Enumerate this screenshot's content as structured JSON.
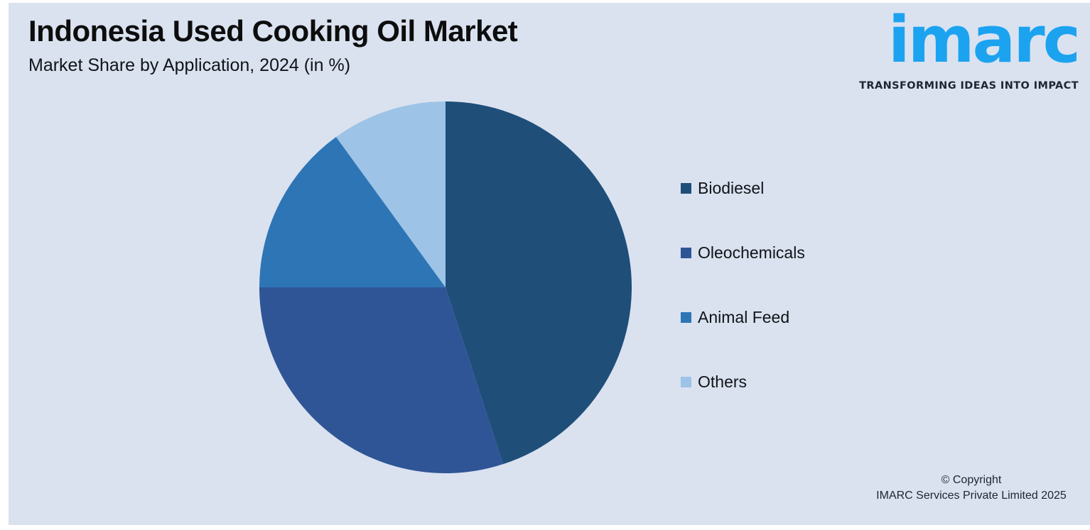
{
  "header": {
    "title": "Indonesia Used Cooking Oil Market",
    "subtitle": "Market Share by Application, 2024 (in %)"
  },
  "logo": {
    "text": "imarc",
    "tagline": "TRANSFORMING IDEAS INTO IMPACT",
    "brand_color": "#1ca3f0"
  },
  "footer": {
    "line1": "© Copyright",
    "line2": "IMARC Services Private Limited 2025"
  },
  "colors": {
    "page_background": "#ffffff",
    "panel_background": "#dae2f0",
    "title_text": "#0d0d0d",
    "footer_text": "#1f2430"
  },
  "chart_data": {
    "type": "pie",
    "title": "Indonesia Used Cooking Oil Market",
    "subtitle": "Market Share by Application, 2024 (in %)",
    "legend_position": "right",
    "start_angle_deg": -90,
    "direction": "clockwise",
    "slices": [
      {
        "label": "Biodiesel",
        "value": 45,
        "color": "#1f4e79"
      },
      {
        "label": "Oleochemicals",
        "value": 30,
        "color": "#2f5597"
      },
      {
        "label": "Animal Feed",
        "value": 15,
        "color": "#2e75b6"
      },
      {
        "label": "Others",
        "value": 10,
        "color": "#9dc3e6"
      }
    ]
  }
}
